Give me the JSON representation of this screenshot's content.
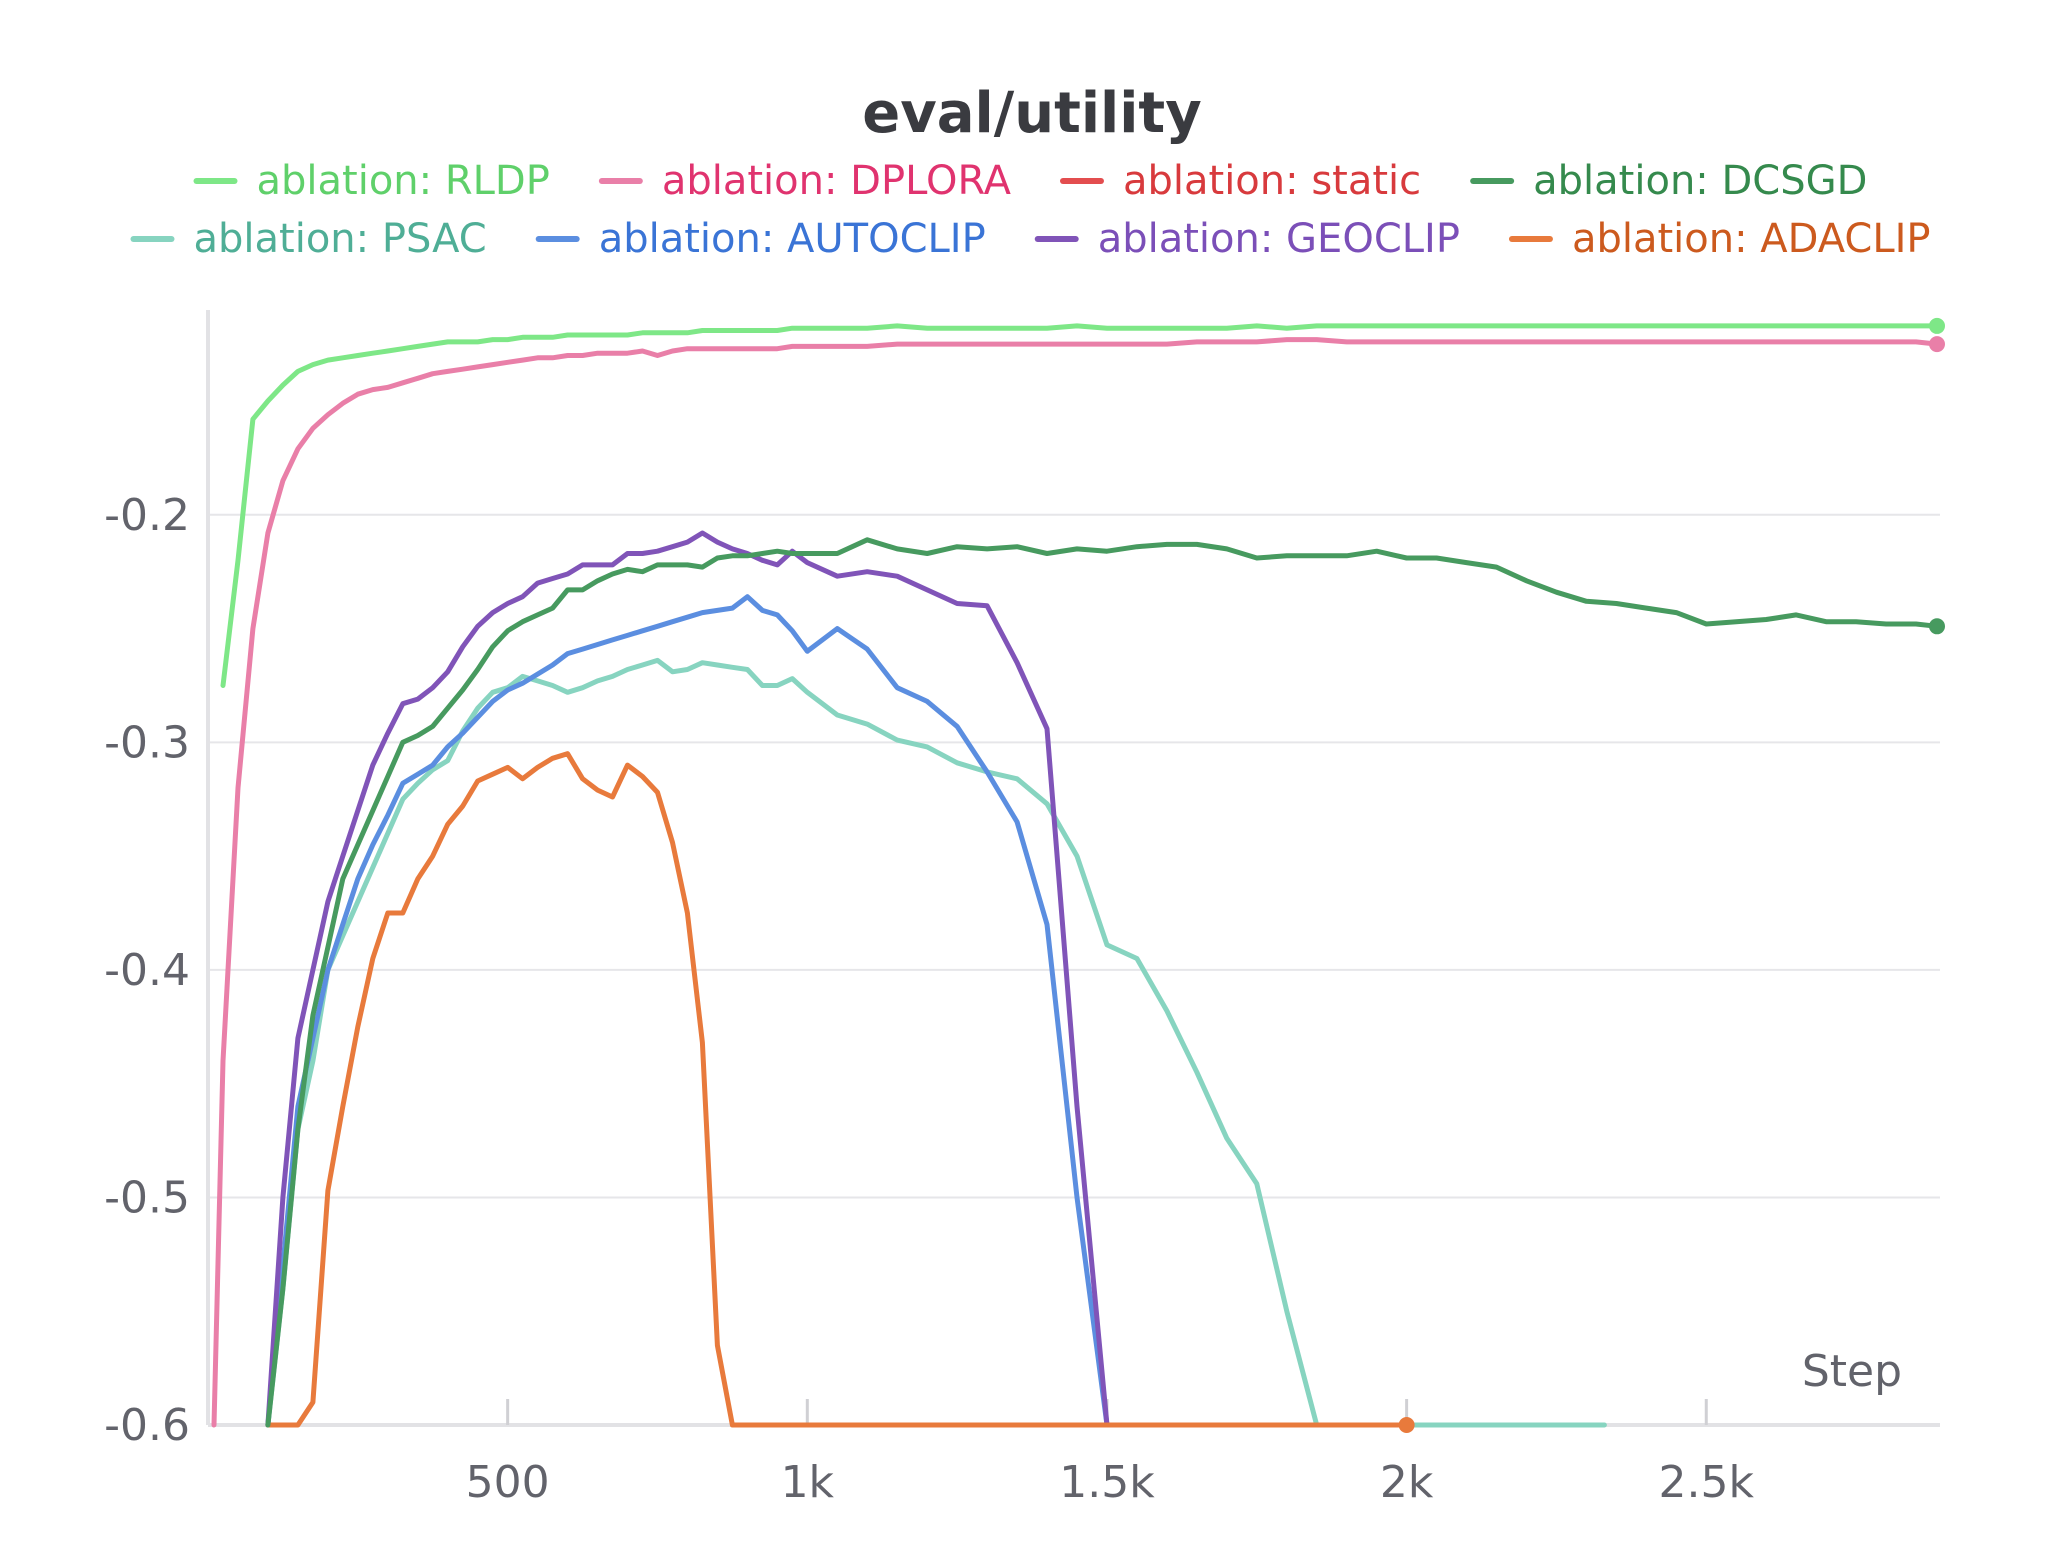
{
  "chart_data": {
    "type": "line",
    "title": "eval/utility",
    "xlabel": "Step",
    "ylabel": "",
    "xlim": [
      0,
      2890
    ],
    "ylim": [
      -0.6,
      -0.11
    ],
    "x_ticks": [
      {
        "value": 500,
        "label": "500"
      },
      {
        "value": 1000,
        "label": "1k"
      },
      {
        "value": 1500,
        "label": "1.5k"
      },
      {
        "value": 2000,
        "label": "2k"
      },
      {
        "value": 2500,
        "label": "2.5k"
      }
    ],
    "y_ticks": [
      {
        "value": -0.2,
        "label": "-0.2"
      },
      {
        "value": -0.3,
        "label": "-0.3"
      },
      {
        "value": -0.4,
        "label": "-0.4"
      },
      {
        "value": -0.5,
        "label": "-0.5"
      },
      {
        "value": -0.6,
        "label": "-0.6"
      }
    ],
    "grid": "horizontal",
    "legend_position": "top",
    "series": [
      {
        "name": "ablation: RLDP",
        "color": "#7ee787",
        "text_color": "#5fd06a",
        "end_marker": true,
        "x": [
          25,
          50,
          75,
          100,
          125,
          150,
          175,
          200,
          225,
          250,
          275,
          300,
          325,
          350,
          375,
          400,
          425,
          450,
          475,
          500,
          525,
          550,
          575,
          600,
          625,
          650,
          675,
          700,
          725,
          750,
          775,
          800,
          825,
          850,
          875,
          900,
          925,
          950,
          975,
          1000,
          1050,
          1100,
          1150,
          1200,
          1250,
          1300,
          1350,
          1400,
          1450,
          1500,
          1550,
          1600,
          1650,
          1700,
          1750,
          1800,
          1850,
          1900,
          1950,
          2000,
          2050,
          2100,
          2150,
          2200,
          2250,
          2300,
          2350,
          2400,
          2450,
          2500,
          2550,
          2600,
          2650,
          2700,
          2750,
          2800,
          2850,
          2885
        ],
        "y": [
          -0.275,
          -0.22,
          -0.158,
          -0.15,
          -0.143,
          -0.137,
          -0.134,
          -0.132,
          -0.131,
          -0.13,
          -0.129,
          -0.128,
          -0.127,
          -0.126,
          -0.125,
          -0.124,
          -0.124,
          -0.124,
          -0.123,
          -0.123,
          -0.122,
          -0.122,
          -0.122,
          -0.121,
          -0.121,
          -0.121,
          -0.121,
          -0.121,
          -0.12,
          -0.12,
          -0.12,
          -0.12,
          -0.119,
          -0.119,
          -0.119,
          -0.119,
          -0.119,
          -0.119,
          -0.118,
          -0.118,
          -0.118,
          -0.118,
          -0.117,
          -0.118,
          -0.118,
          -0.118,
          -0.118,
          -0.118,
          -0.117,
          -0.118,
          -0.118,
          -0.118,
          -0.118,
          -0.118,
          -0.117,
          -0.118,
          -0.117,
          -0.117,
          -0.117,
          -0.117,
          -0.117,
          -0.117,
          -0.117,
          -0.117,
          -0.117,
          -0.117,
          -0.117,
          -0.117,
          -0.117,
          -0.117,
          -0.117,
          -0.117,
          -0.117,
          -0.117,
          -0.117,
          -0.117,
          -0.117,
          -0.117
        ]
      },
      {
        "name": "ablation: DPLORA",
        "color": "#e97fa8",
        "text_color": "#e0336f",
        "end_marker": true,
        "x": [
          10,
          25,
          50,
          75,
          100,
          125,
          150,
          175,
          200,
          225,
          250,
          275,
          300,
          325,
          350,
          375,
          400,
          425,
          450,
          475,
          500,
          525,
          550,
          575,
          600,
          625,
          650,
          675,
          700,
          725,
          750,
          775,
          800,
          825,
          850,
          875,
          900,
          925,
          950,
          975,
          1000,
          1050,
          1100,
          1150,
          1200,
          1250,
          1300,
          1350,
          1400,
          1450,
          1500,
          1550,
          1600,
          1650,
          1700,
          1750,
          1800,
          1850,
          1900,
          1950,
          2000,
          2050,
          2100,
          2150,
          2200,
          2250,
          2300,
          2350,
          2400,
          2450,
          2500,
          2550,
          2600,
          2650,
          2700,
          2750,
          2800,
          2850,
          2885
        ],
        "y": [
          -0.6,
          -0.44,
          -0.32,
          -0.25,
          -0.208,
          -0.185,
          -0.171,
          -0.162,
          -0.156,
          -0.151,
          -0.147,
          -0.145,
          -0.144,
          -0.142,
          -0.14,
          -0.138,
          -0.137,
          -0.136,
          -0.135,
          -0.134,
          -0.133,
          -0.132,
          -0.131,
          -0.131,
          -0.13,
          -0.13,
          -0.129,
          -0.129,
          -0.129,
          -0.128,
          -0.13,
          -0.128,
          -0.127,
          -0.127,
          -0.127,
          -0.127,
          -0.127,
          -0.127,
          -0.127,
          -0.126,
          -0.126,
          -0.126,
          -0.126,
          -0.125,
          -0.125,
          -0.125,
          -0.125,
          -0.125,
          -0.125,
          -0.125,
          -0.125,
          -0.125,
          -0.125,
          -0.124,
          -0.124,
          -0.124,
          -0.123,
          -0.123,
          -0.124,
          -0.124,
          -0.124,
          -0.124,
          -0.124,
          -0.124,
          -0.124,
          -0.124,
          -0.124,
          -0.124,
          -0.124,
          -0.124,
          -0.124,
          -0.124,
          -0.124,
          -0.124,
          -0.124,
          -0.124,
          -0.124,
          -0.124,
          -0.125
        ]
      },
      {
        "name": "ablation: static",
        "color": "#e34d4f",
        "text_color": "#d83a3d",
        "end_marker": false,
        "x": [],
        "y": []
      },
      {
        "name": "ablation: DCSGD",
        "color": "#479a5f",
        "text_color": "#358a4d",
        "end_marker": true,
        "x": [
          100,
          125,
          150,
          175,
          200,
          225,
          250,
          275,
          300,
          325,
          350,
          375,
          400,
          425,
          450,
          475,
          500,
          525,
          550,
          575,
          600,
          625,
          650,
          675,
          700,
          725,
          750,
          775,
          800,
          825,
          850,
          875,
          900,
          925,
          950,
          975,
          1000,
          1050,
          1100,
          1150,
          1200,
          1250,
          1300,
          1350,
          1400,
          1450,
          1500,
          1550,
          1600,
          1650,
          1700,
          1750,
          1800,
          1850,
          1900,
          1950,
          2000,
          2050,
          2100,
          2150,
          2200,
          2250,
          2300,
          2350,
          2400,
          2450,
          2500,
          2550,
          2600,
          2650,
          2700,
          2750,
          2800,
          2850,
          2885
        ],
        "y": [
          -0.6,
          -0.54,
          -0.47,
          -0.42,
          -0.39,
          -0.36,
          -0.345,
          -0.33,
          -0.315,
          -0.3,
          -0.297,
          -0.293,
          -0.285,
          -0.277,
          -0.268,
          -0.258,
          -0.251,
          -0.247,
          -0.244,
          -0.241,
          -0.233,
          -0.233,
          -0.229,
          -0.226,
          -0.224,
          -0.225,
          -0.222,
          -0.222,
          -0.222,
          -0.223,
          -0.219,
          -0.218,
          -0.218,
          -0.217,
          -0.216,
          -0.217,
          -0.217,
          -0.217,
          -0.211,
          -0.215,
          -0.217,
          -0.214,
          -0.215,
          -0.214,
          -0.217,
          -0.215,
          -0.216,
          -0.214,
          -0.213,
          -0.213,
          -0.215,
          -0.219,
          -0.218,
          -0.218,
          -0.218,
          -0.216,
          -0.219,
          -0.219,
          -0.221,
          -0.223,
          -0.229,
          -0.234,
          -0.238,
          -0.239,
          -0.241,
          -0.243,
          -0.248,
          -0.247,
          -0.246,
          -0.244,
          -0.247,
          -0.247,
          -0.248,
          -0.248,
          -0.249
        ]
      },
      {
        "name": "ablation: PSAC",
        "color": "#87d4c0",
        "text_color": "#4fae96",
        "end_marker": false,
        "x": [
          100,
          125,
          150,
          175,
          200,
          225,
          250,
          275,
          300,
          325,
          350,
          375,
          400,
          425,
          450,
          475,
          500,
          525,
          550,
          575,
          600,
          625,
          650,
          675,
          700,
          725,
          750,
          775,
          800,
          825,
          850,
          875,
          900,
          925,
          950,
          975,
          1000,
          1050,
          1100,
          1150,
          1200,
          1250,
          1300,
          1350,
          1400,
          1450,
          1500,
          1550,
          1600,
          1650,
          1700,
          1750,
          1800,
          1850,
          1900,
          1950,
          2000,
          2050,
          2100,
          2150,
          2200,
          2250,
          2300,
          2330
        ],
        "y": [
          -0.6,
          -0.54,
          -0.47,
          -0.44,
          -0.4,
          -0.385,
          -0.37,
          -0.355,
          -0.34,
          -0.325,
          -0.318,
          -0.312,
          -0.308,
          -0.295,
          -0.285,
          -0.278,
          -0.276,
          -0.271,
          -0.273,
          -0.275,
          -0.278,
          -0.276,
          -0.273,
          -0.271,
          -0.268,
          -0.266,
          -0.264,
          -0.269,
          -0.268,
          -0.265,
          -0.266,
          -0.267,
          -0.268,
          -0.275,
          -0.275,
          -0.272,
          -0.278,
          -0.288,
          -0.292,
          -0.299,
          -0.302,
          -0.309,
          -0.313,
          -0.316,
          -0.327,
          -0.35,
          -0.389,
          -0.395,
          -0.418,
          -0.445,
          -0.474,
          -0.494,
          -0.55,
          -0.6,
          -0.6,
          -0.6,
          -0.6,
          -0.6,
          -0.6,
          -0.6,
          -0.6,
          -0.6,
          -0.6,
          -0.6
        ]
      },
      {
        "name": "ablation: AUTOCLIP",
        "color": "#5b8ee0",
        "text_color": "#3a74d6",
        "end_marker": false,
        "x": [
          100,
          125,
          150,
          175,
          200,
          225,
          250,
          275,
          300,
          325,
          350,
          375,
          400,
          425,
          450,
          475,
          500,
          525,
          550,
          575,
          600,
          625,
          650,
          675,
          700,
          725,
          750,
          775,
          800,
          825,
          850,
          875,
          900,
          925,
          950,
          975,
          1000,
          1050,
          1100,
          1150,
          1200,
          1250,
          1300,
          1350,
          1400,
          1450,
          1500,
          1550,
          1600,
          1650,
          1700,
          1750,
          1800,
          1850,
          1900,
          1950,
          2000
        ],
        "y": [
          -0.6,
          -0.53,
          -0.46,
          -0.43,
          -0.4,
          -0.38,
          -0.36,
          -0.345,
          -0.332,
          -0.318,
          -0.314,
          -0.31,
          -0.302,
          -0.296,
          -0.289,
          -0.282,
          -0.277,
          -0.274,
          -0.27,
          -0.266,
          -0.261,
          -0.259,
          -0.257,
          -0.255,
          -0.253,
          -0.251,
          -0.249,
          -0.247,
          -0.245,
          -0.243,
          -0.242,
          -0.241,
          -0.236,
          -0.242,
          -0.244,
          -0.251,
          -0.26,
          -0.25,
          -0.259,
          -0.276,
          -0.282,
          -0.293,
          -0.313,
          -0.335,
          -0.38,
          -0.5,
          -0.6,
          -0.6,
          -0.6,
          -0.6,
          -0.6,
          -0.6,
          -0.6,
          -0.6,
          -0.6,
          -0.6,
          -0.6
        ]
      },
      {
        "name": "ablation: GEOCLIP",
        "color": "#8054b8",
        "text_color": "#7b4fb8",
        "end_marker": false,
        "x": [
          100,
          125,
          150,
          175,
          200,
          225,
          250,
          275,
          300,
          325,
          350,
          375,
          400,
          425,
          450,
          475,
          500,
          525,
          550,
          575,
          600,
          625,
          650,
          675,
          700,
          725,
          750,
          775,
          800,
          825,
          850,
          875,
          900,
          925,
          950,
          975,
          1000,
          1050,
          1100,
          1150,
          1200,
          1250,
          1300,
          1350,
          1400,
          1450,
          1500,
          1550,
          1600,
          1650,
          1700,
          1750,
          1800,
          1850,
          1900,
          1950,
          2000
        ],
        "y": [
          -0.6,
          -0.5,
          -0.43,
          -0.4,
          -0.37,
          -0.35,
          -0.33,
          -0.31,
          -0.296,
          -0.283,
          -0.281,
          -0.276,
          -0.269,
          -0.258,
          -0.249,
          -0.243,
          -0.239,
          -0.236,
          -0.23,
          -0.228,
          -0.226,
          -0.222,
          -0.222,
          -0.222,
          -0.217,
          -0.217,
          -0.216,
          -0.214,
          -0.212,
          -0.208,
          -0.212,
          -0.215,
          -0.217,
          -0.22,
          -0.222,
          -0.216,
          -0.221,
          -0.227,
          -0.225,
          -0.227,
          -0.233,
          -0.239,
          -0.24,
          -0.265,
          -0.294,
          -0.46,
          -0.6,
          -0.6,
          -0.6,
          -0.6,
          -0.6,
          -0.6,
          -0.6,
          -0.6,
          -0.6,
          -0.6,
          -0.6
        ]
      },
      {
        "name": "ablation: ADACLIP",
        "color": "#e87a3c",
        "text_color": "#cc5a1e",
        "end_marker": true,
        "x": [
          100,
          125,
          150,
          175,
          200,
          225,
          250,
          275,
          300,
          325,
          350,
          375,
          400,
          425,
          450,
          475,
          500,
          525,
          550,
          575,
          600,
          625,
          650,
          675,
          700,
          725,
          750,
          775,
          800,
          825,
          850,
          875,
          900,
          925,
          950,
          975,
          1000,
          1050,
          1100,
          1150,
          1200,
          1250,
          1300,
          1350,
          1400,
          1450,
          1500,
          1550,
          1600,
          1650,
          1700,
          1750,
          1800,
          1850,
          1900,
          1950,
          2000
        ],
        "y": [
          -0.6,
          -0.6,
          -0.6,
          -0.59,
          -0.497,
          -0.46,
          -0.425,
          -0.395,
          -0.375,
          -0.375,
          -0.36,
          -0.35,
          -0.336,
          -0.328,
          -0.317,
          -0.314,
          -0.311,
          -0.316,
          -0.311,
          -0.307,
          -0.305,
          -0.316,
          -0.321,
          -0.324,
          -0.31,
          -0.315,
          -0.322,
          -0.344,
          -0.375,
          -0.432,
          -0.565,
          -0.6,
          -0.6,
          -0.6,
          -0.6,
          -0.6,
          -0.6,
          -0.6,
          -0.6,
          -0.6,
          -0.6,
          -0.6,
          -0.6,
          -0.6,
          -0.6,
          -0.6,
          -0.6,
          -0.6,
          -0.6,
          -0.6,
          -0.6,
          -0.6,
          -0.6,
          -0.6,
          -0.6,
          -0.6,
          -0.6
        ]
      }
    ]
  }
}
